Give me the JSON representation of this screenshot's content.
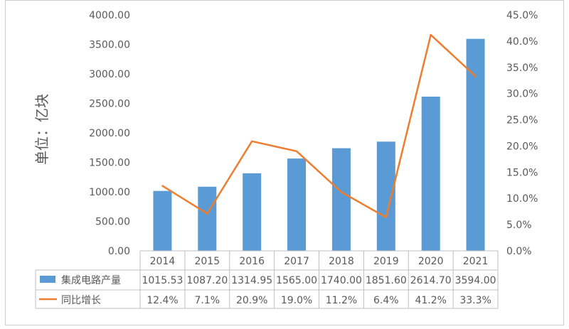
{
  "chart_data": {
    "type": "bar+line",
    "categories": [
      "2014",
      "2015",
      "2016",
      "2017",
      "2018",
      "2019",
      "2020",
      "2021"
    ],
    "ylabel": "单位：亿块",
    "ylim": [
      0,
      4000
    ],
    "y_ticks": [
      "0.00",
      "500.00",
      "1000.00",
      "1500.00",
      "2000.00",
      "2500.00",
      "3000.00",
      "3500.00",
      "4000.00"
    ],
    "y2lim": [
      0,
      45
    ],
    "y2_ticks": [
      "0.0%",
      "5.0%",
      "10.0%",
      "15.0%",
      "20.0%",
      "25.0%",
      "30.0%",
      "35.0%",
      "40.0%",
      "45.0%"
    ],
    "grid": false,
    "legend": "data-table",
    "series": [
      {
        "name": "集成电路产量",
        "kind": "bar",
        "axis": "left",
        "color": "#5b9bd5",
        "values": [
          1015.53,
          1087.2,
          1314.95,
          1565.0,
          1740.0,
          1851.6,
          2614.7,
          3594.0
        ],
        "labels": [
          "1015.53",
          "1087.20",
          "1314.95",
          "1565.00",
          "1740.00",
          "1851.60",
          "2614.70",
          "3594.00"
        ]
      },
      {
        "name": "同比增长",
        "kind": "line",
        "axis": "right",
        "color": "#ed7d31",
        "values": [
          12.4,
          7.1,
          20.9,
          19.0,
          11.2,
          6.4,
          41.2,
          33.3
        ],
        "labels": [
          "12.4%",
          "7.1%",
          "20.9%",
          "19.0%",
          "11.2%",
          "6.4%",
          "41.2%",
          "33.3%"
        ]
      }
    ]
  }
}
